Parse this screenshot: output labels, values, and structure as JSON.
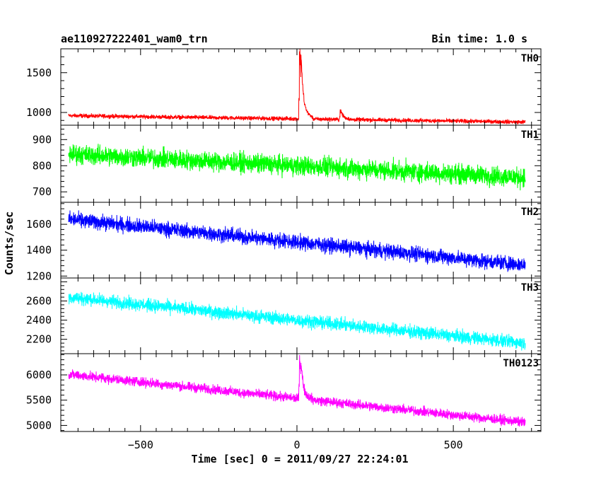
{
  "header": {
    "title": "ae110927222401_wam0_trn",
    "bin_time": "Bin time: 1.0 s"
  },
  "chart_data": {
    "type": "line",
    "xlabel": "Time [sec] 0 = 2011/09/27 22:24:01",
    "ylabel": "Counts/sec",
    "xlim": [
      -755,
      780
    ],
    "x_range": [
      -730,
      730
    ],
    "xticks": [
      -500,
      0,
      500
    ],
    "panels": [
      {
        "name": "TH0",
        "color": "#ff0000",
        "ylim": [
          840,
          1800
        ],
        "yticks": [
          1000,
          1500
        ],
        "trend": [
          [
            -730,
            960
          ],
          [
            730,
            880
          ]
        ],
        "noise": 38,
        "features": [
          [
            10,
            1800,
            4
          ],
          [
            15,
            1370,
            12
          ],
          [
            140,
            1030,
            10
          ]
        ]
      },
      {
        "name": "TH1",
        "color": "#00ff00",
        "ylim": [
          660,
          955
        ],
        "yticks": [
          700,
          800,
          900
        ],
        "trend": [
          [
            -730,
            845
          ],
          [
            730,
            755
          ]
        ],
        "noise": 55,
        "features": []
      },
      {
        "name": "TH2",
        "color": "#0000ff",
        "ylim": [
          1185,
          1770
        ],
        "yticks": [
          1200,
          1400,
          1600
        ],
        "trend": [
          [
            -730,
            1640
          ],
          [
            730,
            1285
          ]
        ],
        "noise": 85,
        "features": []
      },
      {
        "name": "TH3",
        "color": "#00ffff",
        "ylim": [
          2050,
          2840
        ],
        "yticks": [
          2200,
          2400,
          2600
        ],
        "trend": [
          [
            -730,
            2640
          ],
          [
            730,
            2160
          ]
        ],
        "noise": 100,
        "features": []
      },
      {
        "name": "TH0123",
        "color": "#ff00ff",
        "ylim": [
          4880,
          6420
        ],
        "yticks": [
          5000,
          5500,
          6000
        ],
        "trend": [
          [
            -730,
            6010
          ],
          [
            730,
            5060
          ]
        ],
        "noise": 140,
        "features": [
          [
            10,
            6350,
            4
          ],
          [
            15,
            5950,
            12
          ]
        ]
      }
    ]
  }
}
